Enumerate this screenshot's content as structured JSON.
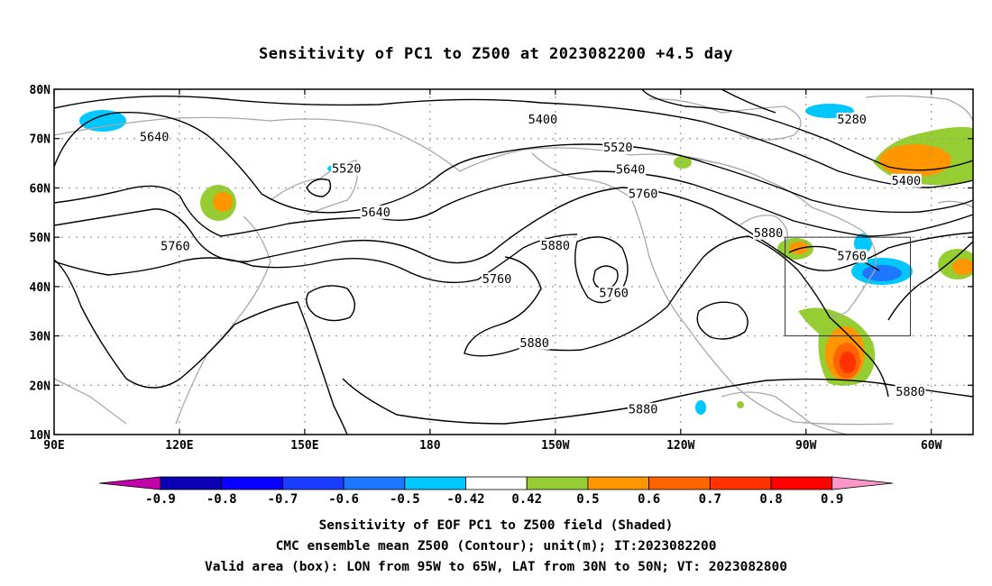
{
  "title": "Sensitivity of PC1 to Z500 at 2023082200 +4.5 day",
  "captions": {
    "line1": "Sensitivity of EOF PC1 to Z500 field (Shaded)",
    "line2": "CMC ensemble mean Z500 (Contour); unit(m); IT:2023082200",
    "line3": "Valid area (box): LON from 95W to 65W, LAT from 30N to 50N; VT: 2023082800"
  },
  "map": {
    "lon_range": [
      90,
      310
    ],
    "lat_range": [
      10,
      80
    ],
    "lat_ticks": [
      {
        "value": 80,
        "label": "80N"
      },
      {
        "value": 70,
        "label": "70N"
      },
      {
        "value": 60,
        "label": "60N"
      },
      {
        "value": 50,
        "label": "50N"
      },
      {
        "value": 40,
        "label": "40N"
      },
      {
        "value": 30,
        "label": "30N"
      },
      {
        "value": 20,
        "label": "20N"
      },
      {
        "value": 10,
        "label": "10N"
      }
    ],
    "lon_ticks": [
      {
        "value": 90,
        "label": "90E"
      },
      {
        "value": 120,
        "label": "120E"
      },
      {
        "value": 150,
        "label": "150E"
      },
      {
        "value": 180,
        "label": "180"
      },
      {
        "value": 210,
        "label": "150W"
      },
      {
        "value": 240,
        "label": "120W"
      },
      {
        "value": 270,
        "label": "90W"
      },
      {
        "value": 300,
        "label": "60W"
      }
    ],
    "valid_box": {
      "lon_min": 265,
      "lon_max": 295,
      "lat_min": 30,
      "lat_max": 50
    },
    "contour_labels": [
      {
        "text": "5400",
        "lon": 207,
        "lat": 73.8
      },
      {
        "text": "5280",
        "lon": 281,
        "lat": 73.8
      },
      {
        "text": "5640",
        "lon": 114,
        "lat": 70.2
      },
      {
        "text": "5520",
        "lon": 225,
        "lat": 68.1
      },
      {
        "text": "5520",
        "lon": 160,
        "lat": 63.8
      },
      {
        "text": "5640",
        "lon": 228,
        "lat": 63.6
      },
      {
        "text": "5400",
        "lon": 294,
        "lat": 61.4
      },
      {
        "text": "5760",
        "lon": 231,
        "lat": 58.7
      },
      {
        "text": "5640",
        "lon": 167,
        "lat": 55.0
      },
      {
        "text": "5760",
        "lon": 119,
        "lat": 48.1
      },
      {
        "text": "5880",
        "lon": 210,
        "lat": 48.2
      },
      {
        "text": "5880",
        "lon": 261,
        "lat": 50.8
      },
      {
        "text": "5760",
        "lon": 281,
        "lat": 46.1
      },
      {
        "text": "5760",
        "lon": 196,
        "lat": 41.4
      },
      {
        "text": "5760",
        "lon": 224,
        "lat": 38.6
      },
      {
        "text": "5880",
        "lon": 205,
        "lat": 28.5
      },
      {
        "text": "5880",
        "lon": 295,
        "lat": 18.6
      },
      {
        "text": "5880",
        "lon": 231,
        "lat": 15.0
      }
    ],
    "colors": {
      "gridline": "#9a9a9a",
      "coast": "#a8a8a8",
      "contour": "#000000"
    }
  },
  "colorbar": {
    "labels": [
      "-0.9",
      "-0.8",
      "-0.7",
      "-0.6",
      "-0.5",
      "-0.42",
      "0.42",
      "0.5",
      "0.6",
      "0.7",
      "0.8",
      "0.9"
    ],
    "colors": [
      "#c400a8",
      "#0a00b4",
      "#0a00ff",
      "#1a3cff",
      "#1e78ff",
      "#00c8ff",
      "#ffffff",
      "#96cd32",
      "#ff9600",
      "#ff6400",
      "#ff3200",
      "#ff0000",
      "#ff96c8"
    ]
  }
}
